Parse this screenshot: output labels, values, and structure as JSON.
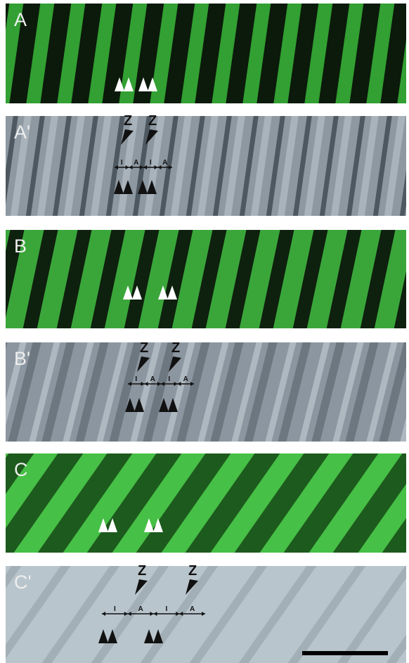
{
  "panels": [
    {
      "label": "A"
    },
    {
      "label": "A'",
      "z_labels": [
        "Z",
        "Z"
      ],
      "band_labels": [
        "I",
        "A",
        "I",
        "A"
      ]
    },
    {
      "label": "B"
    },
    {
      "label": "B'",
      "z_labels": [
        "Z",
        "Z"
      ],
      "band_labels": [
        "I",
        "A",
        "I",
        "A"
      ]
    },
    {
      "label": "C"
    },
    {
      "label": "C'",
      "z_labels": [
        "Z",
        "Z"
      ],
      "band_labels": [
        "I",
        "A",
        "I",
        "A"
      ]
    }
  ]
}
